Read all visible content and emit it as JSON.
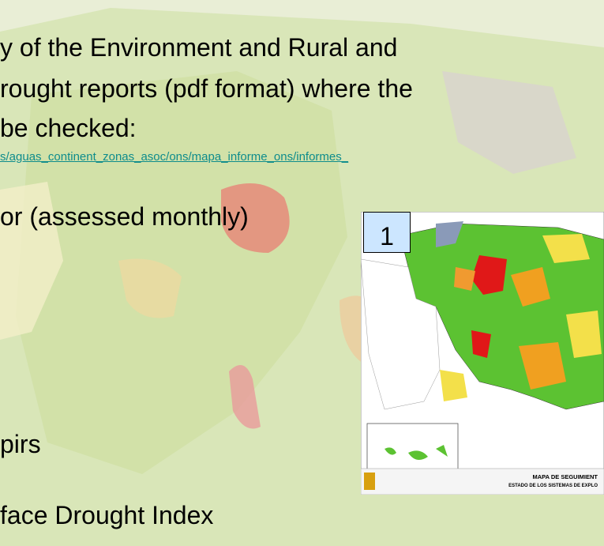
{
  "slide": {
    "lines": [
      "y of the Environment and Rural and",
      "rought reports (pdf format) where the",
      "be checked:"
    ],
    "link": "s/aguas_continent_zonas_asoc/ons/mapa_informe_ons/informes_",
    "item_1": "or (assessed monthly)",
    "badge": "1",
    "item_2": "pirs",
    "item_3": "face Drought Index"
  },
  "map": {
    "title": "MAPA DE SEGUIMIENT",
    "subtitle": "ESTADO DE LOS SISTEMAS DE EXPLO"
  }
}
